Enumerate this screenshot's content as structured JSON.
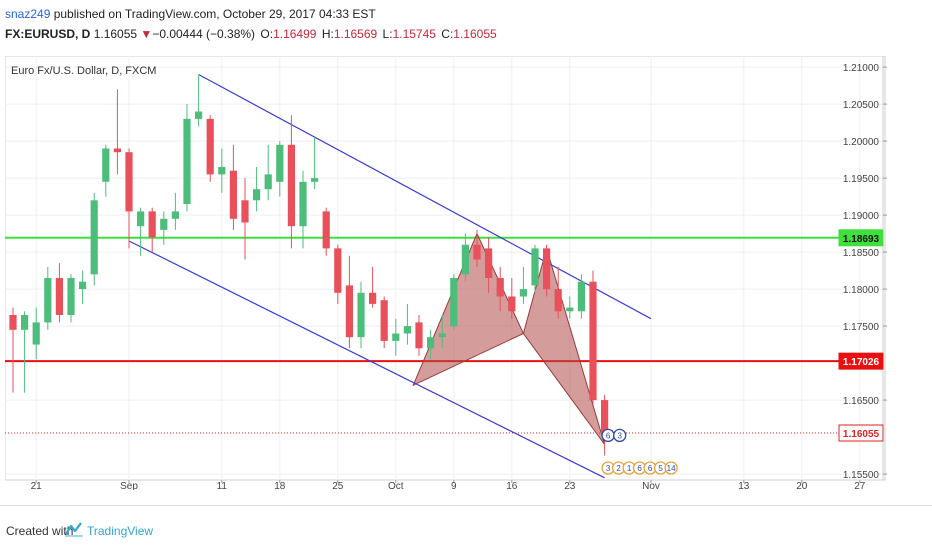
{
  "header": {
    "user": "snaz249",
    "published_text": " published on TradingView.com, October 29, 2017 04:33 EST",
    "symbol": "FX:EURUSD, D",
    "last": "1.16055",
    "change_arrow": "▼",
    "change": "−0.00444 (−0.38%)",
    "o_label": "O:",
    "o_val": "1.16499",
    "h_label": "H:",
    "h_val": "1.16569",
    "l_label": "L:",
    "l_val": "1.15745",
    "c_label": "C:",
    "c_val": "1.16055"
  },
  "footer": {
    "created_with": "Created with",
    "brand": "TradingView"
  },
  "colors": {
    "up": "#4dbd7c",
    "down": "#e8505b",
    "channel": "#3b3bd6",
    "support_green": "#3ee03e",
    "resistance_red": "#e81010",
    "pattern_fill": "#b34a4a",
    "last_price": "#e02020"
  },
  "chart_data": {
    "type": "candlestick",
    "title": "Euro Fx/U.S. Dollar, D, FXCM",
    "y_range": [
      1.1542,
      1.2115
    ],
    "y_ticks": [
      "1.21000",
      "1.20500",
      "1.20000",
      "1.19500",
      "1.19000",
      "1.18500",
      "1.18000",
      "1.17500",
      "1.16500",
      "1.15500"
    ],
    "x_ticks": [
      {
        "label": "21",
        "bar": 2
      },
      {
        "label": "Sep",
        "bar": 10
      },
      {
        "label": "11",
        "bar": 18
      },
      {
        "label": "18",
        "bar": 23
      },
      {
        "label": "25",
        "bar": 28
      },
      {
        "label": "Oct",
        "bar": 33
      },
      {
        "label": "9",
        "bar": 38
      },
      {
        "label": "16",
        "bar": 43
      },
      {
        "label": "23",
        "bar": 48
      },
      {
        "label": "Nov",
        "bar": 55
      },
      {
        "label": "13",
        "bar": 63
      },
      {
        "label": "20",
        "bar": 68
      },
      {
        "label": "27",
        "bar": 73
      }
    ],
    "candles": [
      {
        "o": 1.1765,
        "h": 1.1775,
        "l": 1.166,
        "c": 1.1745
      },
      {
        "o": 1.1745,
        "h": 1.177,
        "l": 1.166,
        "c": 1.1765
      },
      {
        "o": 1.1725,
        "h": 1.1775,
        "l": 1.1705,
        "c": 1.1755
      },
      {
        "o": 1.1755,
        "h": 1.183,
        "l": 1.1745,
        "c": 1.1815
      },
      {
        "o": 1.1815,
        "h": 1.1835,
        "l": 1.1755,
        "c": 1.1765
      },
      {
        "o": 1.1765,
        "h": 1.182,
        "l": 1.1755,
        "c": 1.1815
      },
      {
        "o": 1.18,
        "h": 1.1825,
        "l": 1.178,
        "c": 1.181
      },
      {
        "o": 1.182,
        "h": 1.193,
        "l": 1.1805,
        "c": 1.192
      },
      {
        "o": 1.1945,
        "h": 1.1995,
        "l": 1.1925,
        "c": 1.199
      },
      {
        "o": 1.199,
        "h": 1.207,
        "l": 1.1955,
        "c": 1.1985
      },
      {
        "o": 1.1985,
        "h": 1.199,
        "l": 1.1855,
        "c": 1.1905
      },
      {
        "o": 1.1885,
        "h": 1.191,
        "l": 1.1845,
        "c": 1.1905
      },
      {
        "o": 1.1905,
        "h": 1.191,
        "l": 1.185,
        "c": 1.187
      },
      {
        "o": 1.188,
        "h": 1.1905,
        "l": 1.186,
        "c": 1.1895
      },
      {
        "o": 1.1895,
        "h": 1.193,
        "l": 1.188,
        "c": 1.1905
      },
      {
        "o": 1.1915,
        "h": 1.205,
        "l": 1.1905,
        "c": 1.203
      },
      {
        "o": 1.203,
        "h": 1.209,
        "l": 1.202,
        "c": 1.204
      },
      {
        "o": 1.203,
        "h": 1.2035,
        "l": 1.1945,
        "c": 1.1955
      },
      {
        "o": 1.1955,
        "h": 1.199,
        "l": 1.193,
        "c": 1.1965
      },
      {
        "o": 1.196,
        "h": 1.1995,
        "l": 1.188,
        "c": 1.1895
      },
      {
        "o": 1.192,
        "h": 1.195,
        "l": 1.184,
        "c": 1.189
      },
      {
        "o": 1.192,
        "h": 1.1965,
        "l": 1.1905,
        "c": 1.1935
      },
      {
        "o": 1.1935,
        "h": 1.1995,
        "l": 1.192,
        "c": 1.1955
      },
      {
        "o": 1.1945,
        "h": 1.2,
        "l": 1.1925,
        "c": 1.1995
      },
      {
        "o": 1.1995,
        "h": 1.2035,
        "l": 1.1855,
        "c": 1.1885
      },
      {
        "o": 1.1885,
        "h": 1.196,
        "l": 1.1855,
        "c": 1.1945
      },
      {
        "o": 1.1945,
        "h": 1.2005,
        "l": 1.1935,
        "c": 1.195
      },
      {
        "o": 1.1905,
        "h": 1.191,
        "l": 1.1845,
        "c": 1.1855
      },
      {
        "o": 1.1855,
        "h": 1.186,
        "l": 1.178,
        "c": 1.1795
      },
      {
        "o": 1.1805,
        "h": 1.1845,
        "l": 1.172,
        "c": 1.1735
      },
      {
        "o": 1.1735,
        "h": 1.181,
        "l": 1.172,
        "c": 1.1795
      },
      {
        "o": 1.1795,
        "h": 1.183,
        "l": 1.1775,
        "c": 1.178
      },
      {
        "o": 1.1785,
        "h": 1.179,
        "l": 1.172,
        "c": 1.173
      },
      {
        "o": 1.173,
        "h": 1.176,
        "l": 1.171,
        "c": 1.174
      },
      {
        "o": 1.174,
        "h": 1.178,
        "l": 1.1725,
        "c": 1.175
      },
      {
        "o": 1.1755,
        "h": 1.1765,
        "l": 1.171,
        "c": 1.172
      },
      {
        "o": 1.172,
        "h": 1.1745,
        "l": 1.1705,
        "c": 1.1735
      },
      {
        "o": 1.1735,
        "h": 1.1765,
        "l": 1.172,
        "c": 1.174
      },
      {
        "o": 1.175,
        "h": 1.182,
        "l": 1.1745,
        "c": 1.1815
      },
      {
        "o": 1.182,
        "h": 1.1875,
        "l": 1.181,
        "c": 1.186
      },
      {
        "o": 1.186,
        "h": 1.188,
        "l": 1.183,
        "c": 1.184
      },
      {
        "o": 1.1855,
        "h": 1.187,
        "l": 1.1795,
        "c": 1.1815
      },
      {
        "o": 1.1815,
        "h": 1.183,
        "l": 1.177,
        "c": 1.179
      },
      {
        "o": 1.179,
        "h": 1.1815,
        "l": 1.176,
        "c": 1.177
      },
      {
        "o": 1.179,
        "h": 1.183,
        "l": 1.178,
        "c": 1.18
      },
      {
        "o": 1.1805,
        "h": 1.186,
        "l": 1.1795,
        "c": 1.1855
      },
      {
        "o": 1.1855,
        "h": 1.186,
        "l": 1.179,
        "c": 1.18
      },
      {
        "o": 1.18,
        "h": 1.183,
        "l": 1.176,
        "c": 1.177
      },
      {
        "o": 1.177,
        "h": 1.179,
        "l": 1.176,
        "c": 1.1775
      },
      {
        "o": 1.177,
        "h": 1.182,
        "l": 1.176,
        "c": 1.181
      },
      {
        "o": 1.181,
        "h": 1.1825,
        "l": 1.1645,
        "c": 1.165
      },
      {
        "o": 1.165,
        "h": 1.1657,
        "l": 1.1575,
        "c": 1.1606
      }
    ],
    "channel_upper": [
      {
        "bar": 16,
        "price": 1.209
      },
      {
        "bar": 55,
        "price": 1.176
      }
    ],
    "channel_lower": [
      {
        "bar": 10,
        "price": 1.1865
      },
      {
        "bar": 51,
        "price": 1.1545
      }
    ],
    "horizontal_lines": [
      {
        "price": 1.18693,
        "label": "1.18693",
        "color": "#3ee03e"
      },
      {
        "price": 1.17026,
        "label": "1.17026",
        "color": "#e81010"
      },
      {
        "price": 1.16055,
        "label": "1.16055",
        "color": "#e02020",
        "style": "dotted"
      }
    ],
    "harmonic_pattern": [
      {
        "bar": 34.5,
        "price": 1.167
      },
      {
        "bar": 40,
        "price": 1.1875
      },
      {
        "bar": 44,
        "price": 1.174
      },
      {
        "bar": 46,
        "price": 1.1855
      },
      {
        "bar": 51,
        "price": 1.159
      }
    ],
    "event_badges": [
      {
        "bar": 51.3,
        "price": 1.1605,
        "label": "6"
      },
      {
        "bar": 52.3,
        "price": 1.1605,
        "label": "3"
      }
    ],
    "bottom_badges": [
      "3",
      "2",
      "1",
      "6",
      "6",
      "5",
      "14"
    ]
  }
}
